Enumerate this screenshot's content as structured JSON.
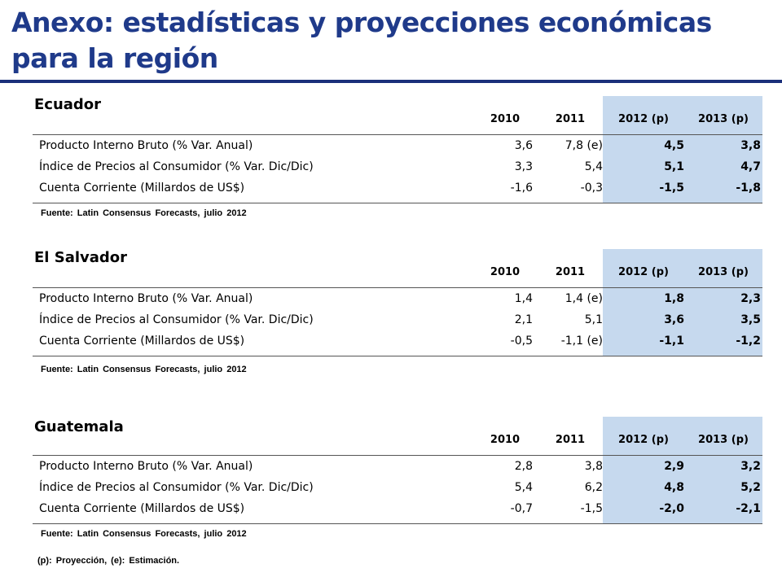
{
  "title": "Anexo: estadísticas y proyecciones económicas para la región",
  "columns": [
    "2010",
    "2011",
    "2012 (p)",
    "2013 (p)"
  ],
  "source": "Fuente: Latin Consensus Forecasts, julio 2012",
  "footnote": "(p): Proyección, (e): Estimación.",
  "colors": {
    "title": "#1f3a8a",
    "rule": "#1b2f7a",
    "highlight": "#c6d9ee"
  },
  "sections": [
    {
      "country": "Ecuador",
      "rows": [
        {
          "label": "Producto Interno Bruto (% Var. Anual)",
          "v2010": "3,6",
          "v2011": "7,8 (e)",
          "v2012": "4,5",
          "v2013": "3,8"
        },
        {
          "label": "Índice de Precios al Consumidor (% Var. Dic/Dic)",
          "v2010": "3,3",
          "v2011": "5,4",
          "v2012": "5,1",
          "v2013": "4,7"
        },
        {
          "label": "Cuenta Corriente (Millardos de US$)",
          "v2010": "-1,6",
          "v2011": "-0,3",
          "v2012": "-1,5",
          "v2013": "-1,8"
        }
      ]
    },
    {
      "country": "El Salvador",
      "rows": [
        {
          "label": "Producto Interno Bruto (% Var. Anual)",
          "v2010": "1,4",
          "v2011": "1,4 (e)",
          "v2012": "1,8",
          "v2013": "2,3"
        },
        {
          "label": "Índice de Precios al Consumidor (% Var. Dic/Dic)",
          "v2010": "2,1",
          "v2011": "5,1",
          "v2012": "3,6",
          "v2013": "3,5"
        },
        {
          "label": "Cuenta Corriente (Millardos de US$)",
          "v2010": "-0,5",
          "v2011": "-1,1 (e)",
          "v2012": "-1,1",
          "v2013": "-1,2"
        }
      ]
    },
    {
      "country": "Guatemala",
      "rows": [
        {
          "label": "Producto Interno Bruto (% Var. Anual)",
          "v2010": "2,8",
          "v2011": "3,8",
          "v2012": "2,9",
          "v2013": "3,2"
        },
        {
          "label": "Índice de Precios al Consumidor (% Var. Dic/Dic)",
          "v2010": "5,4",
          "v2011": "6,2",
          "v2012": "4,8",
          "v2013": "5,2"
        },
        {
          "label": "Cuenta Corriente (Millardos de US$)",
          "v2010": "-0,7",
          "v2011": "-1,5",
          "v2012": "-2,0",
          "v2013": "-2,1"
        }
      ]
    }
  ]
}
